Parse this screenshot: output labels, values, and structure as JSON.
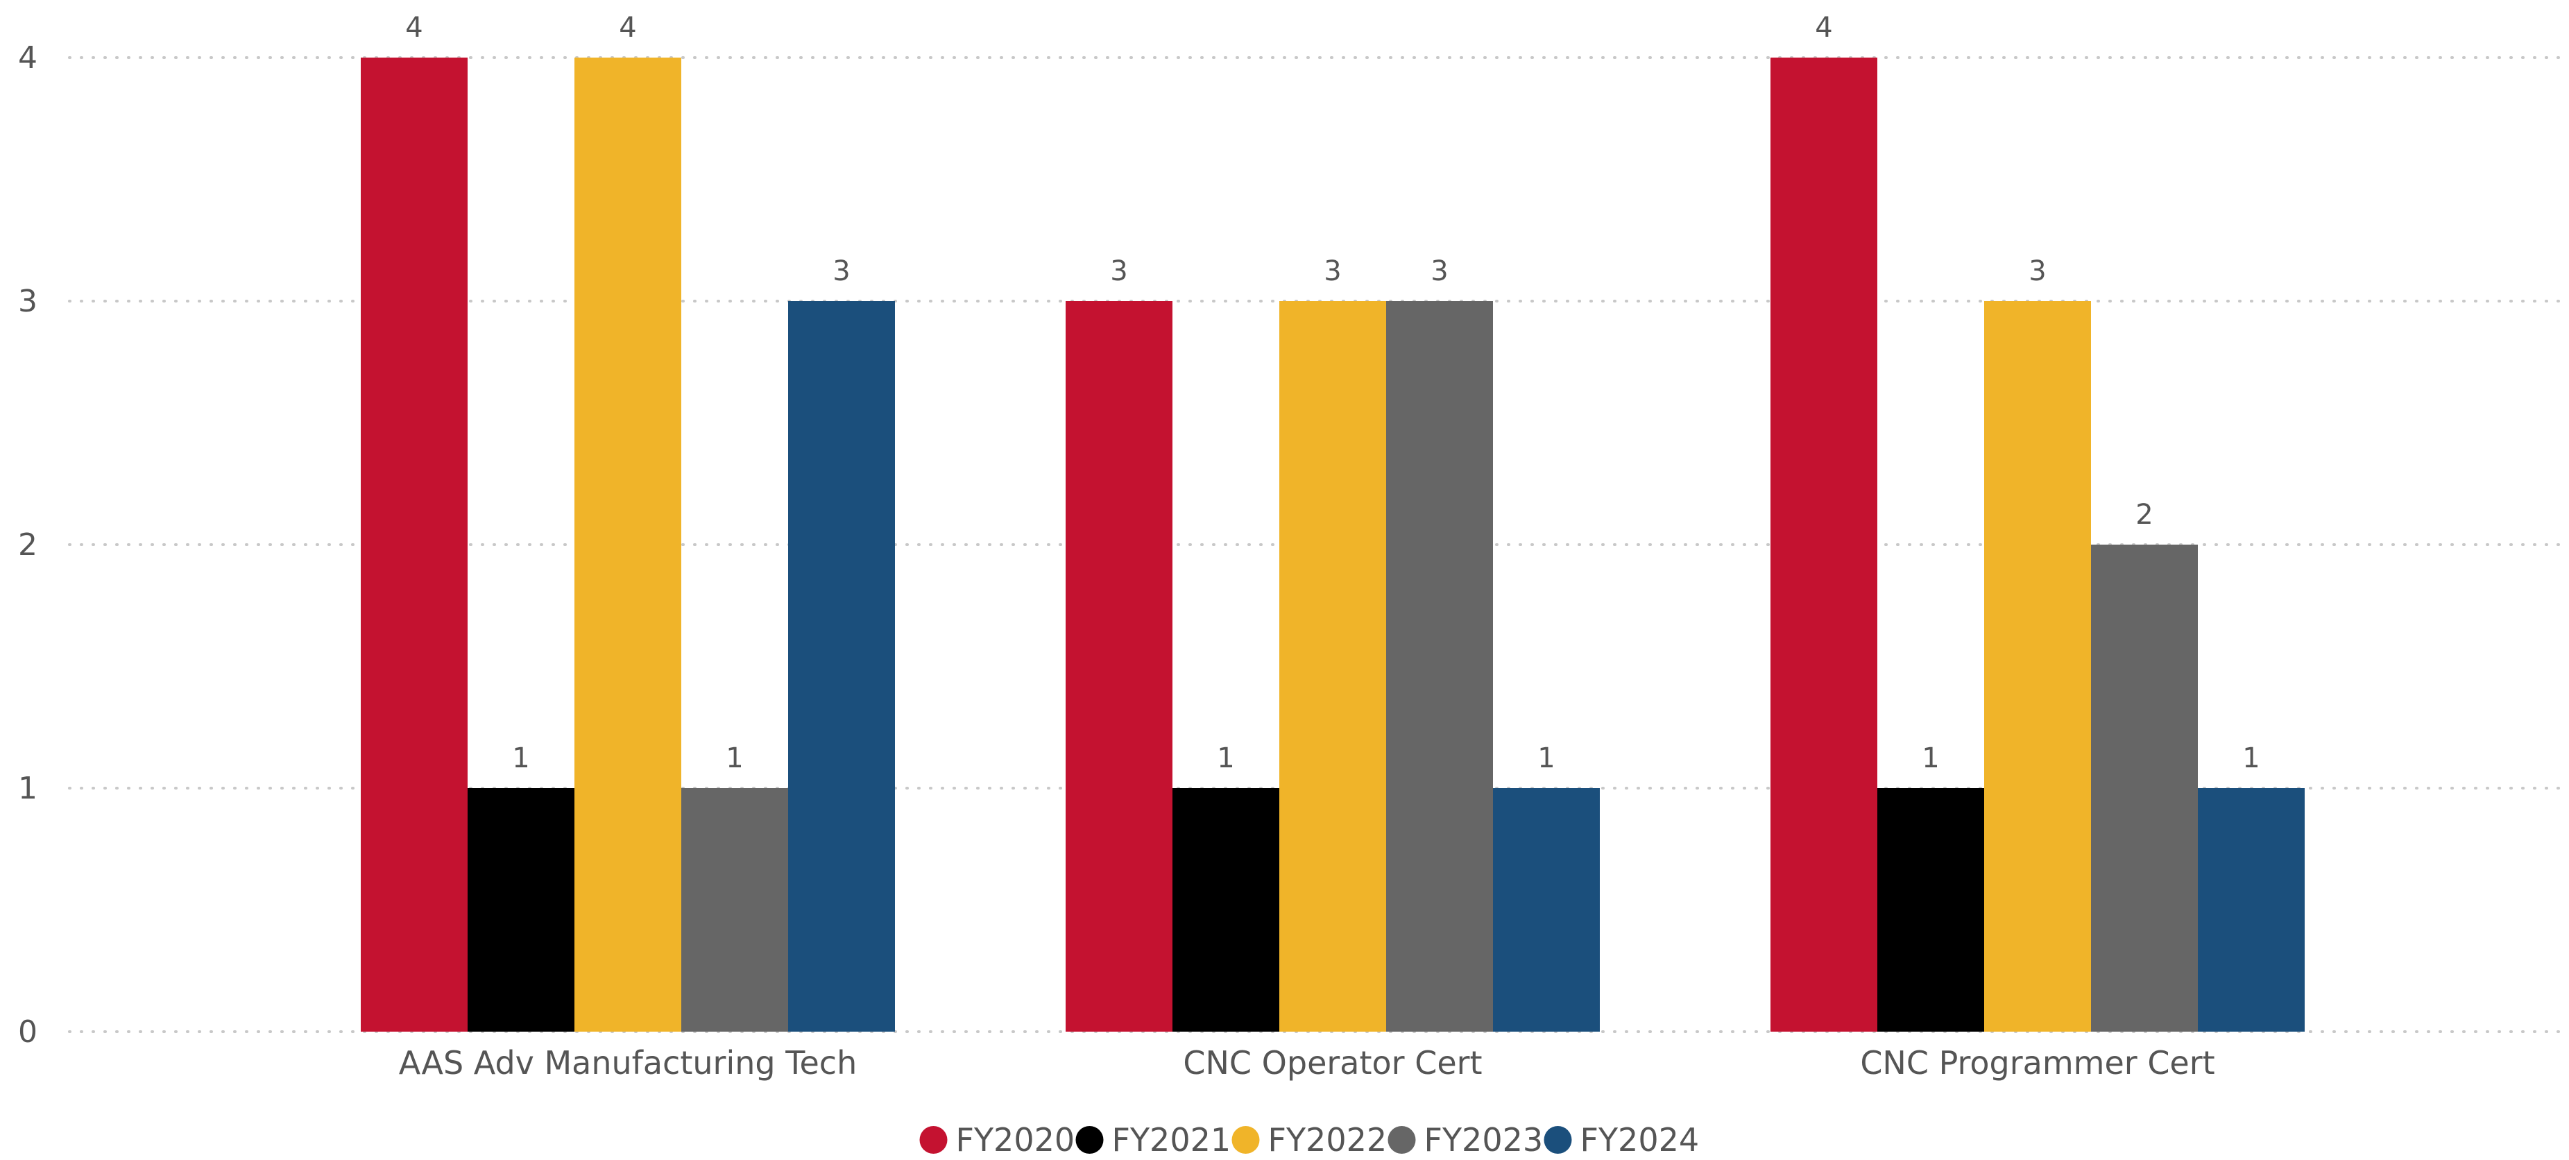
{
  "chart_data": {
    "type": "bar",
    "title": "",
    "xlabel": "",
    "ylabel": "",
    "categories": [
      "AAS Adv Manufacturing Tech",
      "CNC Operator Cert",
      "CNC Programmer Cert"
    ],
    "series": [
      {
        "name": "FY2020",
        "color": "#C41230",
        "values": [
          4,
          3,
          4
        ]
      },
      {
        "name": "FY2021",
        "color": "#000000",
        "values": [
          1,
          1,
          1
        ]
      },
      {
        "name": "FY2022",
        "color": "#F0B429",
        "values": [
          4,
          3,
          3
        ]
      },
      {
        "name": "FY2023",
        "color": "#666666",
        "values": [
          1,
          3,
          2
        ]
      },
      {
        "name": "FY2024",
        "color": "#1B4F7C",
        "values": [
          3,
          1,
          1
        ]
      }
    ],
    "ylim": [
      0,
      4
    ],
    "yticks": [
      "0",
      "1",
      "2",
      "3",
      "4"
    ],
    "grid": true,
    "legend": "bottom-center",
    "data_labels": true
  }
}
